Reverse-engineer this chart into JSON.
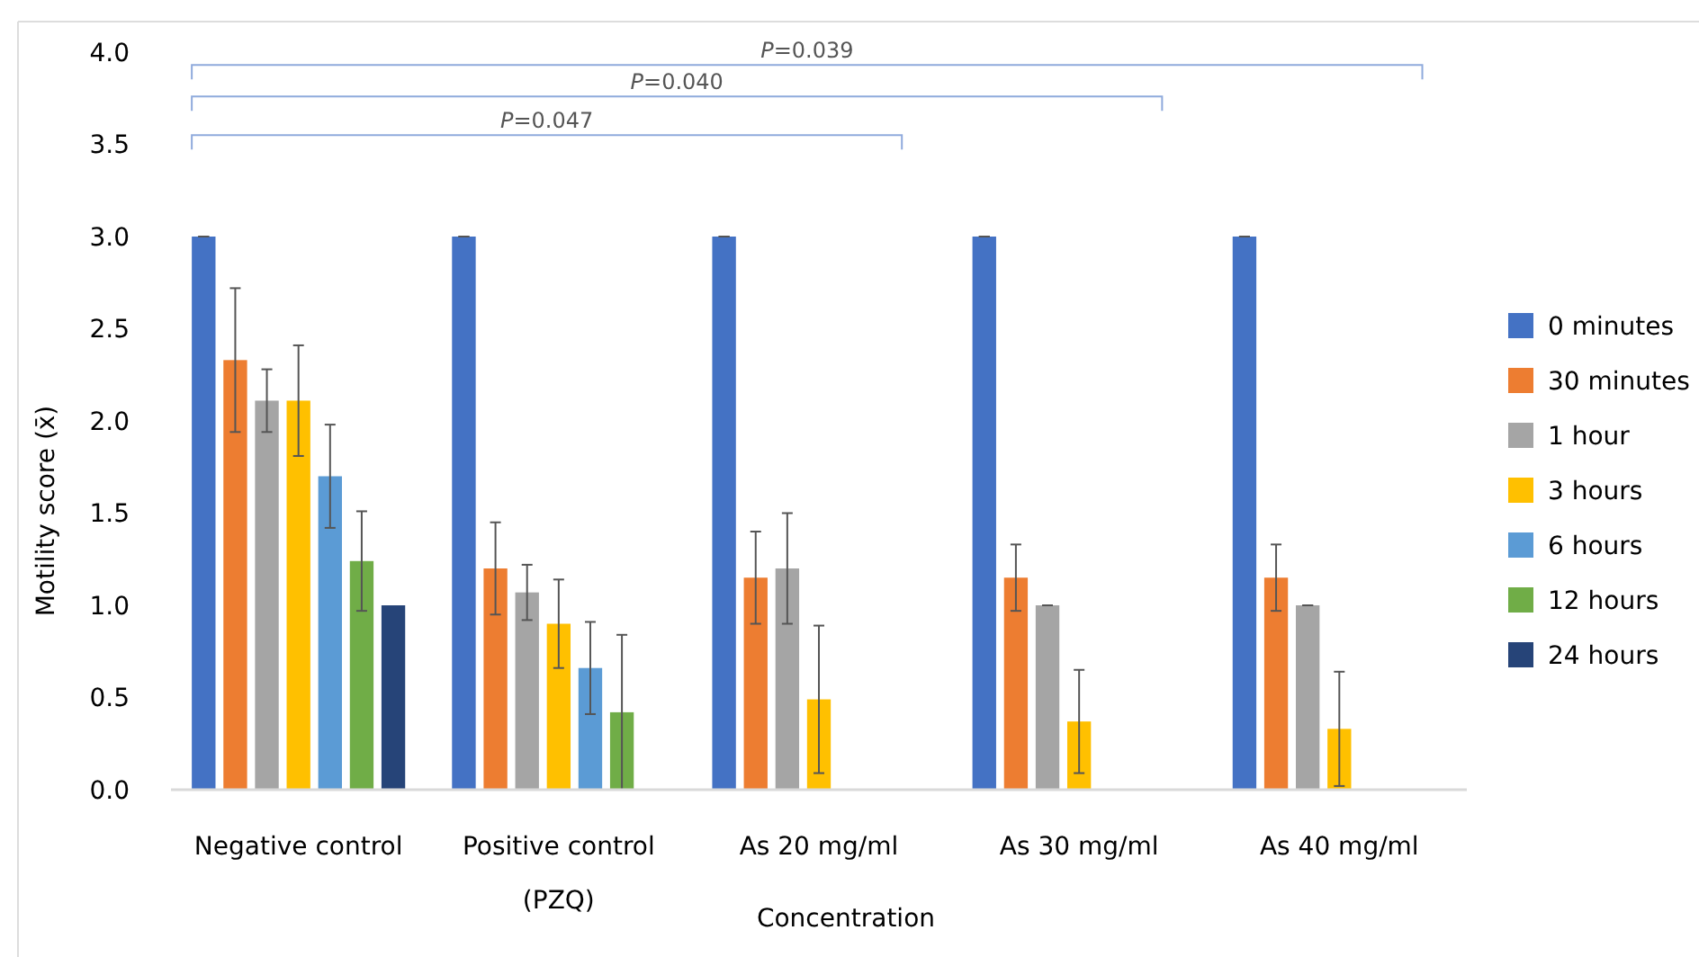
{
  "chart_data": {
    "type": "bar",
    "xlabel": "Concentration",
    "ylabel": "Motility score (x̄)",
    "categories": [
      "Negative control",
      "Positive control (PZQ)",
      "As 20 mg/ml",
      "As 30 mg/ml",
      "As 40 mg/ml"
    ],
    "series": [
      {
        "name": "0 minutes",
        "color": "#4472c4",
        "values": [
          3,
          3,
          3,
          3,
          3
        ],
        "errors": [
          0,
          0,
          0,
          0,
          0
        ]
      },
      {
        "name": "30 minutes",
        "color": "#ed7d31",
        "values": [
          2.33,
          1.2,
          1.15,
          1.15,
          1.15
        ],
        "errors": [
          0.39,
          0.25,
          0.25,
          0.18,
          0.18
        ]
      },
      {
        "name": "1 hour",
        "color": "#a5a5a5",
        "values": [
          2.11,
          1.07,
          1.2,
          1.0,
          1.0
        ],
        "errors": [
          0.17,
          0.15,
          0.3,
          0,
          0
        ]
      },
      {
        "name": "3 hours",
        "color": "#ffc000",
        "values": [
          2.11,
          0.9,
          0.49,
          0.37,
          0.33
        ],
        "errors": [
          0.3,
          0.24,
          0.4,
          0.28,
          0.31
        ]
      },
      {
        "name": "6 hours",
        "color": "#5b9bd5",
        "values": [
          1.7,
          0.66,
          null,
          null,
          null
        ],
        "errors": [
          0.28,
          0.25,
          null,
          null,
          null
        ]
      },
      {
        "name": "12 hours",
        "color": "#70ad47",
        "values": [
          1.24,
          0.42,
          null,
          null,
          null
        ],
        "errors": [
          0.27,
          0.42,
          null,
          null,
          null
        ]
      },
      {
        "name": "24 hours",
        "color": "#264478",
        "values": [
          1.0,
          null,
          null,
          null,
          null
        ]
      }
    ],
    "ylim": [
      0,
      4
    ],
    "yticks": [
      {
        "value": 0,
        "label": "0.0"
      },
      {
        "value": 0.5,
        "label": "0.5"
      },
      {
        "value": 1,
        "label": "1.0"
      },
      {
        "value": 1.5,
        "label": "1.5"
      },
      {
        "value": 2,
        "label": "2.0"
      },
      {
        "value": 2.5,
        "label": "2.5"
      },
      {
        "value": 3,
        "label": "3.0"
      },
      {
        "value": 3.5,
        "label": "3.5"
      },
      {
        "value": 4,
        "label": "4.0"
      }
    ],
    "grid": false,
    "legend": "right",
    "annotations": [
      "P=0.047",
      "P=0.040",
      "P=0.039"
    ]
  }
}
